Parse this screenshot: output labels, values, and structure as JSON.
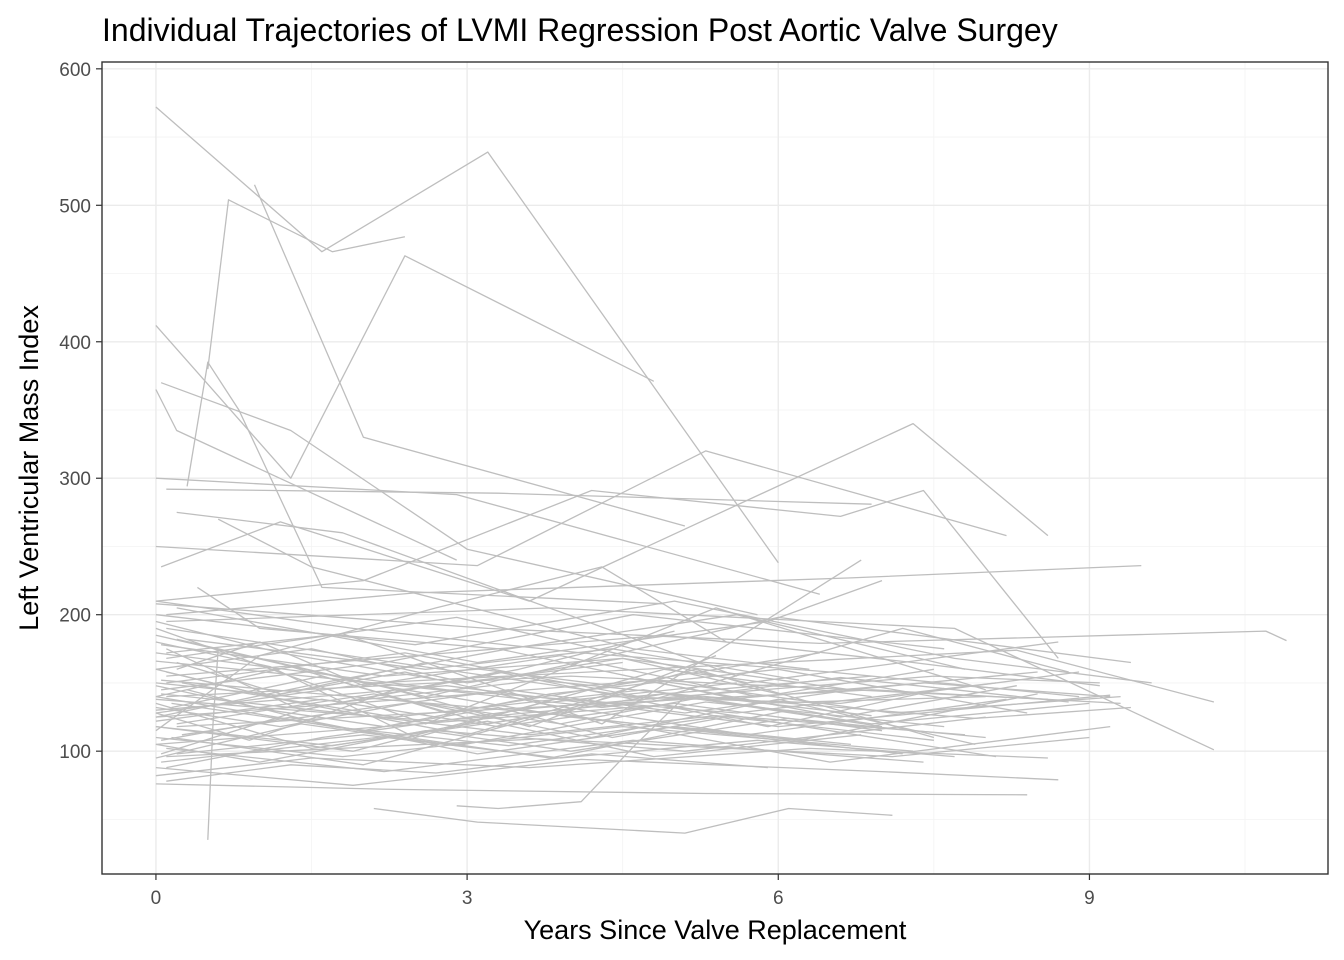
{
  "chart_data": {
    "type": "line",
    "title": "Individual Trajectories of LVMI Regression Post Aortic Valve Surgey",
    "xlabel": "Years Since Valve Replacement",
    "ylabel": "Left Ventricular Mass Index",
    "xlim": [
      -0.52,
      11.3
    ],
    "ylim": [
      10,
      605
    ],
    "x_ticks": [
      0,
      3,
      6,
      9
    ],
    "x_tick_labels": [
      "0",
      "3",
      "6",
      "9"
    ],
    "y_ticks": [
      100,
      200,
      300,
      400,
      500,
      600
    ],
    "y_tick_labels": [
      "100",
      "200",
      "300",
      "400",
      "500",
      "600"
    ],
    "grid": true,
    "legend": "none",
    "line_color": "#bebebe",
    "series": [
      {
        "x": [
          0.0,
          1.6,
          3.2,
          6.0
        ],
        "y": [
          572,
          466,
          539,
          238
        ]
      },
      {
        "x": [
          0.5,
          0.7,
          1.7,
          2.4
        ],
        "y": [
          380,
          504,
          466,
          477
        ]
      },
      {
        "x": [
          0.95,
          2.0,
          5.1
        ],
        "y": [
          515,
          330,
          265
        ]
      },
      {
        "x": [
          0.0,
          1.3,
          2.4,
          4.8
        ],
        "y": [
          412,
          300,
          463,
          371
        ]
      },
      {
        "x": [
          0.0,
          0.2,
          2.9
        ],
        "y": [
          365,
          335,
          240
        ]
      },
      {
        "x": [
          0.05,
          1.3,
          3.0,
          5.8
        ],
        "y": [
          370,
          335,
          248,
          200
        ]
      },
      {
        "x": [
          0.3,
          0.5,
          0.8,
          1.6,
          4.9
        ],
        "y": [
          294,
          385,
          350,
          220,
          208
        ]
      },
      {
        "x": [
          0.0,
          2.9,
          6.4
        ],
        "y": [
          300,
          288,
          215
        ]
      },
      {
        "x": [
          0.1,
          3.3,
          6.9
        ],
        "y": [
          292,
          289,
          281
        ]
      },
      {
        "x": [
          0.2,
          1.8,
          5.6
        ],
        "y": [
          275,
          260,
          155
        ]
      },
      {
        "x": [
          0.0,
          3.1,
          5.3,
          8.2
        ],
        "y": [
          250,
          236,
          320,
          258
        ]
      },
      {
        "x": [
          0.05,
          1.2,
          3.6,
          7.3,
          8.6
        ],
        "y": [
          235,
          268,
          210,
          340,
          258
        ]
      },
      {
        "x": [
          0.0,
          2.0,
          4.2,
          6.6,
          7.4,
          8.7
        ],
        "y": [
          210,
          225,
          291,
          272,
          291,
          168
        ]
      },
      {
        "x": [
          0.1,
          2.5,
          6.7,
          9.5
        ],
        "y": [
          200,
          216,
          227,
          236
        ]
      },
      {
        "x": [
          0.0,
          3.2,
          6.4,
          10.7,
          10.9
        ],
        "y": [
          208,
          190,
          179,
          188,
          181
        ]
      },
      {
        "x": [
          0.1,
          3.8,
          7.7,
          10.2
        ],
        "y": [
          195,
          205,
          190,
          101
        ]
      },
      {
        "x": [
          0.2,
          2.6,
          6.0,
          9.4
        ],
        "y": [
          182,
          140,
          198,
          165
        ]
      },
      {
        "x": [
          0.0,
          2.1,
          5.2,
          8.3,
          10.2
        ],
        "y": [
          166,
          150,
          162,
          174,
          136
        ]
      },
      {
        "x": [
          0.05,
          3.4,
          7.5,
          9.1
        ],
        "y": [
          152,
          130,
          155,
          150
        ]
      },
      {
        "x": [
          0.1,
          4.0,
          8.6
        ],
        "y": [
          140,
          155,
          138
        ]
      },
      {
        "x": [
          0.0,
          2.8,
          6.0,
          9.2
        ],
        "y": [
          130,
          148,
          118,
          141
        ]
      },
      {
        "x": [
          0.2,
          3.6,
          6.9,
          9.3
        ],
        "y": [
          118,
          132,
          145,
          135
        ]
      },
      {
        "x": [
          0.0,
          2.2,
          4.9,
          8.1
        ],
        "y": [
          105,
          118,
          134,
          96
        ]
      },
      {
        "x": [
          0.1,
          3.7,
          7.1,
          9.0
        ],
        "y": [
          96,
          109,
          96,
          110
        ]
      },
      {
        "x": [
          0.0,
          1.9,
          4.1,
          7.0,
          8.7
        ],
        "y": [
          88,
          75,
          94,
          85,
          79
        ]
      },
      {
        "x": [
          0.0,
          2.3,
          5.3,
          8.4
        ],
        "y": [
          76,
          72,
          69,
          68
        ]
      },
      {
        "x": [
          2.1,
          3.1,
          5.1,
          6.1,
          7.1
        ],
        "y": [
          58,
          48,
          40,
          58,
          53
        ]
      },
      {
        "x": [
          0.5,
          0.55,
          0.6
        ],
        "y": [
          35,
          120,
          175
        ]
      },
      {
        "x": [
          2.9,
          3.3,
          4.1,
          4.6,
          5.1
        ],
        "y": [
          60,
          58,
          63,
          103,
          140
        ]
      },
      {
        "x": [
          0.6,
          1.5,
          4.6,
          6.3
        ],
        "y": [
          270,
          235,
          175,
          160
        ]
      },
      {
        "x": [
          0.4,
          1.0,
          3.3,
          5.8,
          8.0
        ],
        "y": [
          220,
          190,
          175,
          135,
          140
        ]
      },
      {
        "x": [
          0.0,
          1.1,
          2.5,
          4.9,
          6.9
        ],
        "y": [
          180,
          162,
          110,
          160,
          140
        ]
      },
      {
        "x": [
          0.05,
          2.2,
          4.6,
          7.6
        ],
        "y": [
          145,
          165,
          200,
          175
        ]
      },
      {
        "x": [
          0.0,
          1.6,
          3.4,
          5.6,
          7.8
        ],
        "y": [
          125,
          150,
          175,
          200,
          160
        ]
      },
      {
        "x": [
          0.15,
          2.0,
          4.4,
          6.6,
          8.9
        ],
        "y": [
          110,
          90,
          140,
          135,
          158
        ]
      },
      {
        "x": [
          0.0,
          1.2,
          3.0,
          5.2,
          7.5
        ],
        "y": [
          160,
          138,
          112,
          160,
          110
        ]
      },
      {
        "x": [
          0.0,
          2.6,
          5.4,
          8.0
        ],
        "y": [
          190,
          120,
          205,
          145
        ]
      },
      {
        "x": [
          0.1,
          1.8,
          4.3,
          6.8
        ],
        "y": [
          172,
          186,
          120,
          240
        ]
      },
      {
        "x": [
          0.2,
          3.1,
          5.9,
          7.0
        ],
        "y": [
          205,
          165,
          195,
          225
        ]
      },
      {
        "x": [
          0.0,
          1.5,
          3.9,
          6.5,
          9.2
        ],
        "y": [
          135,
          102,
          128,
          92,
          118
        ]
      },
      {
        "x": [
          0.1,
          2.4,
          4.8,
          7.2,
          8.8
        ],
        "y": [
          150,
          172,
          138,
          190,
          158
        ]
      },
      {
        "x": [
          0.0,
          1.0,
          2.7,
          4.3,
          5.5
        ],
        "y": [
          115,
          170,
          205,
          235,
          180
        ]
      },
      {
        "x": [
          0.05,
          1.4,
          3.5,
          5.0
        ],
        "y": [
          98,
          130,
          160,
          188
        ]
      },
      {
        "x": [
          0.0,
          2.0,
          4.0,
          6.2,
          8.5
        ],
        "y": [
          185,
          150,
          125,
          108,
          142
        ]
      },
      {
        "x": [
          0.3,
          1.7,
          3.8,
          6.1
        ],
        "y": [
          145,
          118,
          95,
          130
        ]
      },
      {
        "x": [
          0.0,
          0.9,
          2.3,
          3.6,
          5.4
        ],
        "y": [
          128,
          108,
          145,
          118,
          170
        ]
      },
      {
        "x": [
          0.1,
          2.9,
          5.7,
          8.7
        ],
        "y": [
          168,
          198,
          150,
          180
        ]
      },
      {
        "x": [
          0.0,
          1.3,
          2.8,
          4.7,
          6.6,
          8.3
        ],
        "y": [
          140,
          162,
          128,
          152,
          125,
          148
        ]
      },
      {
        "x": [
          0.2,
          2.1,
          4.2,
          6.0,
          7.9
        ],
        "y": [
          120,
          142,
          110,
          138,
          105
        ]
      },
      {
        "x": [
          0.0,
          1.8,
          4.5,
          7.3
        ],
        "y": [
          110,
          96,
          118,
          100
        ]
      },
      {
        "x": [
          0.1,
          1.1,
          2.6,
          4.4,
          6.4
        ],
        "y": [
          158,
          140,
          165,
          148,
          172
        ]
      },
      {
        "x": [
          0.0,
          2.5,
          5.0,
          7.7,
          9.6
        ],
        "y": [
          200,
          178,
          210,
          168,
          150
        ]
      },
      {
        "x": [
          0.15,
          1.6,
          3.2,
          4.9,
          7.0
        ],
        "y": [
          132,
          155,
          120,
          142,
          118
        ]
      },
      {
        "x": [
          0.0,
          1.9,
          3.7,
          5.7,
          8.2
        ],
        "y": [
          118,
          100,
          135,
          112,
          138
        ]
      },
      {
        "x": [
          0.05,
          2.7,
          5.1,
          8.0
        ],
        "y": [
          92,
          115,
          100,
          125
        ]
      },
      {
        "x": [
          0.1,
          1.4,
          3.3,
          5.9,
          7.6
        ],
        "y": [
          175,
          130,
          158,
          118,
          146
        ]
      },
      {
        "x": [
          0.0,
          1.2,
          2.9,
          4.5
        ],
        "y": [
          195,
          172,
          150,
          165
        ]
      },
      {
        "x": [
          0.25,
          2.3,
          4.7,
          6.9,
          9.0
        ],
        "y": [
          150,
          125,
          145,
          120,
          135
        ]
      },
      {
        "x": [
          0.0,
          1.5,
          3.6,
          6.3,
          8.6
        ],
        "y": [
          82,
          95,
          88,
          102,
          95
        ]
      },
      {
        "x": [
          0.1,
          2.2,
          4.6,
          7.4
        ],
        "y": [
          102,
          85,
          108,
          92
        ]
      },
      {
        "x": [
          0.0,
          1.7,
          3.4,
          5.5,
          7.8
        ],
        "y": [
          140,
          118,
          104,
          126,
          112
        ]
      },
      {
        "x": [
          0.2,
          1.0,
          2.0,
          3.9,
          5.8
        ],
        "y": [
          160,
          180,
          148,
          170,
          140
        ]
      },
      {
        "x": [
          0.0,
          2.4,
          4.8,
          7.1,
          9.3
        ],
        "y": [
          125,
          138,
          152,
          128,
          140
        ]
      },
      {
        "x": [
          0.05,
          1.3,
          3.1,
          5.0,
          6.7
        ],
        "y": [
          108,
          125,
          98,
          118,
          105
        ]
      },
      {
        "x": [
          0.0,
          2.8,
          5.6,
          8.1
        ],
        "y": [
          172,
          145,
          128,
          150
        ]
      },
      {
        "x": [
          0.1,
          1.6,
          3.5,
          5.2,
          7.2
        ],
        "y": [
          88,
          110,
          130,
          115,
          98
        ]
      },
      {
        "x": [
          0.0,
          1.9,
          4.1,
          6.5,
          8.9
        ],
        "y": [
          210,
          190,
          172,
          158,
          140
        ]
      },
      {
        "x": [
          0.3,
          2.6,
          4.4,
          6.2
        ],
        "y": [
          182,
          160,
          175,
          152
        ]
      },
      {
        "x": [
          0.0,
          1.1,
          2.2,
          3.3,
          4.4,
          5.5
        ],
        "y": [
          148,
          130,
          118,
          132,
          110,
          125
        ]
      },
      {
        "x": [
          0.15,
          2.0,
          3.8,
          6.0,
          8.4
        ],
        "y": [
          135,
          115,
          142,
          160,
          128
        ]
      },
      {
        "x": [
          0.0,
          1.4,
          2.9,
          5.3,
          7.6
        ],
        "y": [
          95,
          120,
          104,
          136,
          118
        ]
      },
      {
        "x": [
          0.1,
          2.5,
          4.9,
          7.3,
          9.1
        ],
        "y": [
          155,
          170,
          185,
          165,
          148
        ]
      },
      {
        "x": [
          0.0,
          1.7,
          3.2,
          4.8,
          6.8
        ],
        "y": [
          118,
          104,
          122,
          96,
          112
        ]
      },
      {
        "x": [
          0.2,
          1.2,
          2.4,
          3.7,
          5.6
        ],
        "y": [
          165,
          142,
          158,
          135,
          150
        ]
      },
      {
        "x": [
          0.0,
          2.1,
          4.3,
          6.6,
          8.8
        ],
        "y": [
          128,
          150,
          132,
          154,
          136
        ]
      },
      {
        "x": [
          0.05,
          1.8,
          3.6,
          5.4,
          7.5
        ],
        "y": [
          142,
          128,
          112,
          126,
          108
        ]
      },
      {
        "x": [
          0.0,
          1.0,
          2.6,
          4.0,
          6.1,
          8.0
        ],
        "y": [
          105,
          92,
          115,
          100,
          124,
          110
        ]
      },
      {
        "x": [
          0.1,
          2.3,
          4.6,
          6.9
        ],
        "y": [
          190,
          165,
          140,
          155
        ]
      },
      {
        "x": [
          0.0,
          1.5,
          3.0,
          4.5,
          6.0,
          7.5
        ],
        "y": [
          160,
          175,
          150,
          168,
          142,
          160
        ]
      },
      {
        "x": [
          0.25,
          1.9,
          3.4,
          5.1,
          6.8
        ],
        "y": [
          112,
          130,
          145,
          128,
          146
        ]
      },
      {
        "x": [
          0.0,
          2.7,
          5.3,
          7.9,
          9.4
        ],
        "y": [
          138,
          122,
          140,
          124,
          132
        ]
      },
      {
        "x": [
          0.1,
          1.3,
          2.7,
          4.2,
          5.9
        ],
        "y": [
          78,
          90,
          84,
          98,
          88
        ]
      },
      {
        "x": [
          0.0,
          1.6,
          3.3,
          5.0,
          7.0
        ],
        "y": [
          122,
          138,
          118,
          135,
          115
        ]
      },
      {
        "x": [
          0.05,
          2.2,
          4.5,
          6.7,
          8.5
        ],
        "y": [
          178,
          155,
          168,
          145,
          158
        ]
      },
      {
        "x": [
          0.0,
          1.2,
          2.5,
          3.9,
          5.3,
          6.9
        ],
        "y": [
          132,
          118,
          136,
          120,
          140,
          126
        ]
      },
      {
        "x": [
          0.2,
          2.0,
          3.9,
          5.8,
          7.7
        ],
        "y": [
          98,
          112,
          95,
          108,
          96
        ]
      },
      {
        "x": [
          0.0,
          1.8,
          3.7,
          5.5,
          7.4,
          9.2
        ],
        "y": [
          150,
          136,
          152,
          138,
          150,
          140
        ]
      }
    ]
  }
}
